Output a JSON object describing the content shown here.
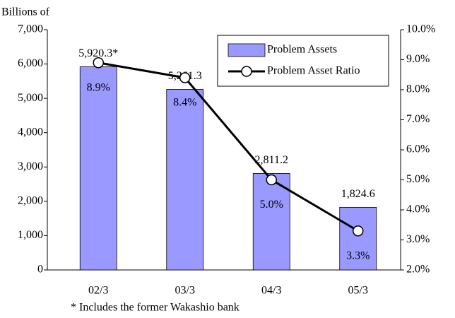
{
  "chart_data": {
    "type": "combo",
    "y_axis_label": "Billions of",
    "footnote": "* Includes the former Wakashio bank",
    "categories": [
      "02/3",
      "03/3",
      "04/3",
      "05/3"
    ],
    "series": [
      {
        "name": "Problem Assets",
        "type": "bar",
        "color": "#9999ff",
        "values": [
          5920.3,
          5261.3,
          2811.2,
          1824.6
        ],
        "value_labels": [
          "5,920.3*",
          "5,261.3",
          "2,811.2",
          "1,824.6"
        ]
      },
      {
        "name": "Problem Asset Ratio",
        "type": "line",
        "axis": "y2",
        "color": "#000000",
        "values": [
          8.9,
          8.4,
          5.0,
          3.3
        ],
        "value_labels": [
          "8.9%",
          "8.4%",
          "5.0%",
          "3.3%"
        ]
      }
    ],
    "ylim": [
      0,
      7000
    ],
    "yticks": [
      0,
      {
        "value": 1000,
        "label": "1,000"
      },
      {
        "value": 2000,
        "label": "2,000"
      },
      {
        "value": 3000,
        "label": "3,000"
      },
      {
        "value": 4000,
        "label": "4,000"
      },
      {
        "value": 5000,
        "label": "5,000"
      },
      {
        "value": 6000,
        "label": "6,000"
      },
      {
        "value": 7000,
        "label": "7,000"
      }
    ],
    "y2lim": [
      2,
      10
    ],
    "y2ticks": [
      {
        "value": 2,
        "label": "2.0%"
      },
      {
        "value": 3,
        "label": "3.0%"
      },
      {
        "value": 4,
        "label": "4.0%"
      },
      {
        "value": 5,
        "label": "5.0%"
      },
      {
        "value": 6,
        "label": "6.0%"
      },
      {
        "value": 7,
        "label": "7.0%"
      },
      {
        "value": 8,
        "label": "8.0%"
      },
      {
        "value": 9,
        "label": "9.0%"
      },
      {
        "value": 10,
        "label": "10.0%"
      }
    ],
    "legend": "upper right"
  }
}
